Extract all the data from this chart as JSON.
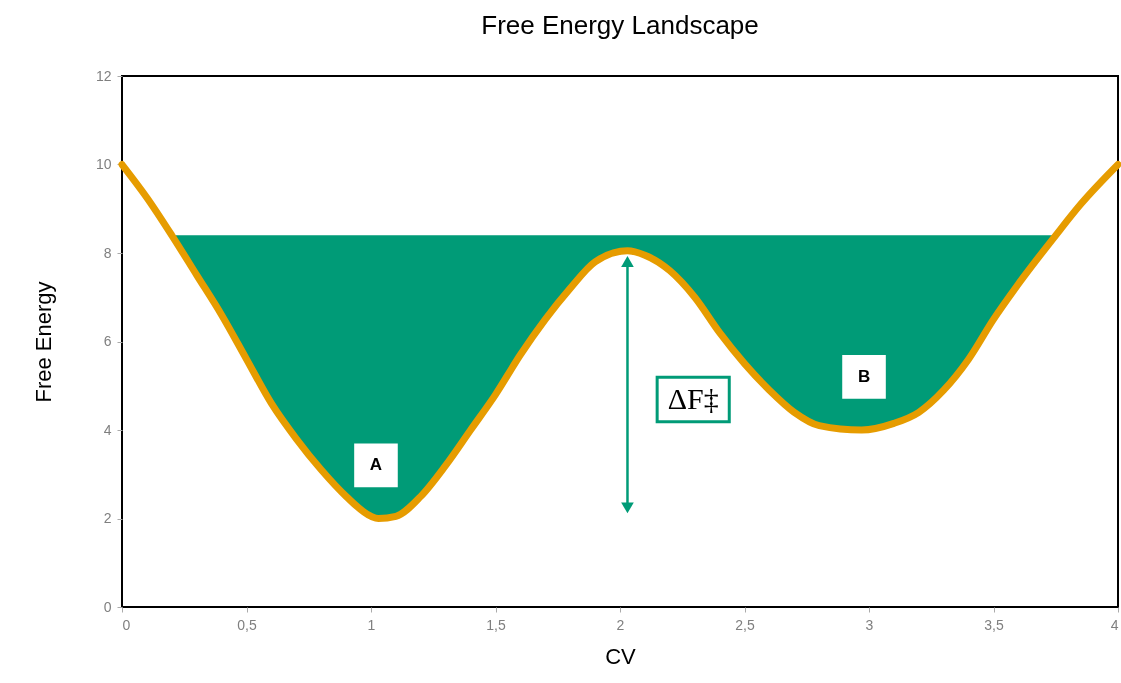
{
  "chart_data": {
    "type": "line",
    "title": "Free Energy Landscape",
    "xlabel": "CV",
    "ylabel": "Free Energy",
    "series": [
      {
        "color": "#e69c00",
        "x": [
          0,
          0.1,
          0.2,
          0.3,
          0.4,
          0.5,
          0.6,
          0.7,
          0.8,
          0.9,
          1.0,
          1.03,
          1.1,
          1.2,
          1.3,
          1.4,
          1.5,
          1.6,
          1.7,
          1.8,
          1.9,
          2.03,
          2.1,
          2.2,
          2.3,
          2.4,
          2.5,
          2.6,
          2.7,
          2.8,
          2.97,
          3.1,
          3.2,
          3.3,
          3.4,
          3.5,
          3.6,
          3.75,
          3.85,
          4
        ],
        "values": [
          10,
          9.25,
          8.4,
          7.5,
          6.6,
          5.6,
          4.6,
          3.8,
          3.1,
          2.5,
          2.05,
          2.0,
          2.05,
          2.5,
          3.2,
          4.0,
          4.8,
          5.7,
          6.5,
          7.2,
          7.8,
          8.05,
          7.95,
          7.6,
          7.0,
          6.2,
          5.5,
          4.9,
          4.4,
          4.1,
          4.0,
          4.15,
          4.4,
          4.9,
          5.6,
          6.5,
          7.3,
          8.4,
          9.1,
          10
        ],
        "lower": [
          null,
          null,
          8.4,
          7.5,
          6.6,
          5.6,
          4.6,
          3.8,
          3.1,
          2.5,
          2.05,
          2.0,
          2.05,
          2.5,
          3.2,
          4.0,
          4.8,
          5.7,
          6.5,
          7.2,
          7.8,
          8.05,
          7.95,
          7.6,
          7.0,
          6.2,
          5.5,
          4.9,
          4.4,
          4.1,
          4.0,
          4.15,
          4.4,
          4.9,
          5.6,
          6.5,
          7.3,
          8.4,
          null,
          null
        ],
        "upper": [
          null,
          null,
          8.4,
          8.4,
          8.4,
          8.4,
          8.4,
          8.4,
          8.4,
          8.4,
          8.4,
          8.4,
          8.4,
          8.4,
          8.4,
          8.4,
          8.4,
          8.4,
          8.4,
          8.4,
          8.4,
          8.4,
          8.4,
          8.4,
          8.4,
          8.4,
          8.4,
          8.4,
          8.4,
          8.4,
          8.4,
          8.4,
          8.4,
          8.4,
          8.4,
          8.4,
          8.4,
          8.4,
          null,
          null
        ]
      }
    ],
    "annotations": [
      {
        "text": "A",
        "x": 1.02,
        "y": 3.2
      },
      {
        "text": "B",
        "x": 2.98,
        "y": 5.2
      },
      "ΔF‡"
    ],
    "xlim": [
      0,
      4
    ],
    "ylim": [
      0,
      12
    ],
    "xticks": [
      {
        "value": 0,
        "label": "0"
      },
      {
        "value": 0.5,
        "label": "0,5"
      },
      {
        "value": 1,
        "label": "1"
      },
      {
        "value": 1.5,
        "label": "1,5"
      },
      {
        "value": 2,
        "label": "2"
      },
      {
        "value": 2.5,
        "label": "2,5"
      },
      {
        "value": 3,
        "label": "3"
      },
      {
        "value": 3.5,
        "label": "3,5"
      },
      {
        "value": 4,
        "label": "4"
      }
    ],
    "yticks": [
      0,
      2,
      4,
      6,
      8,
      10,
      12
    ],
    "grid": false,
    "marker": "none",
    "line_style": "solid"
  }
}
